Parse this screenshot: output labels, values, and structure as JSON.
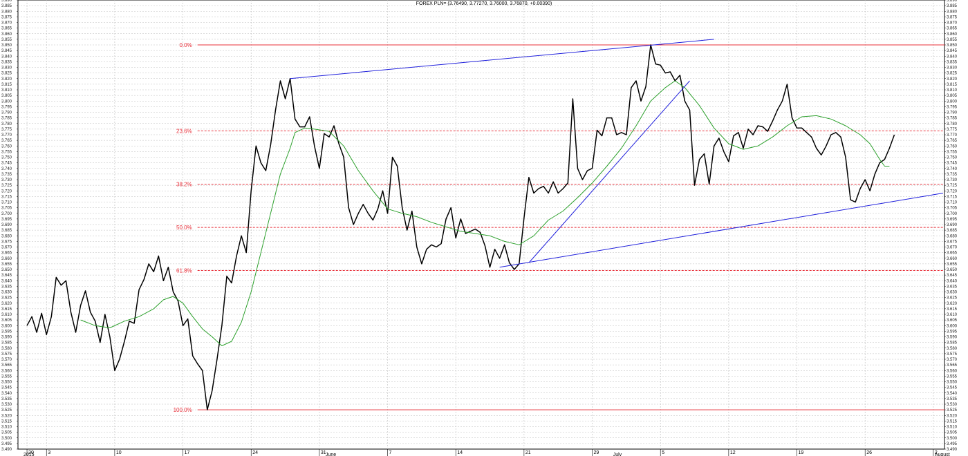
{
  "chart_data": {
    "type": "line",
    "title": "FOREX PLN= (3.76490, 3.77270, 3.76000, 3.76870, +0.00390)",
    "ylim": [
      3.49,
      3.89
    ],
    "ytick_step": 0.005,
    "grid": true,
    "x_axis": {
      "ticks": [
        {
          "label": "30",
          "t": 1
        },
        {
          "label": "3",
          "t": 5
        },
        {
          "label": "10",
          "t": 19
        },
        {
          "label": "17",
          "t": 33
        },
        {
          "label": "24",
          "t": 47
        },
        {
          "label": "31",
          "t": 61
        },
        {
          "label": "7",
          "t": 75
        },
        {
          "label": "14",
          "t": 89
        },
        {
          "label": "21",
          "t": 103
        },
        {
          "label": "29",
          "t": 117
        },
        {
          "label": "5",
          "t": 131
        },
        {
          "label": "12",
          "t": 145
        },
        {
          "label": "19",
          "t": 159
        },
        {
          "label": "26",
          "t": 173
        },
        {
          "label": "2",
          "t": 187
        }
      ],
      "secondary_labels": [
        {
          "label": "2015",
          "t": 0
        },
        {
          "label": "June",
          "t": 62
        },
        {
          "label": "July",
          "t": 121
        },
        {
          "label": "August",
          "t": 187
        }
      ],
      "t_range": [
        0,
        190
      ]
    },
    "series": [
      {
        "color": "#000000",
        "values": [
          [
            1,
            3.6
          ],
          [
            2,
            3.608
          ],
          [
            3,
            3.594
          ],
          [
            4,
            3.611
          ],
          [
            5,
            3.592
          ],
          [
            6,
            3.608
          ],
          [
            7,
            3.643
          ],
          [
            8,
            3.636
          ],
          [
            9,
            3.64
          ],
          [
            10,
            3.612
          ],
          [
            11,
            3.594
          ],
          [
            12,
            3.618
          ],
          [
            13,
            3.631
          ],
          [
            14,
            3.612
          ],
          [
            15,
            3.604
          ],
          [
            16,
            3.585
          ],
          [
            17,
            3.61
          ],
          [
            18,
            3.59
          ],
          [
            19,
            3.56
          ],
          [
            20,
            3.57
          ],
          [
            21,
            3.586
          ],
          [
            22,
            3.604
          ],
          [
            23,
            3.602
          ],
          [
            24,
            3.632
          ],
          [
            25,
            3.641
          ],
          [
            26,
            3.655
          ],
          [
            27,
            3.648
          ],
          [
            28,
            3.662
          ],
          [
            29,
            3.64
          ],
          [
            30,
            3.652
          ],
          [
            31,
            3.63
          ],
          [
            32,
            3.622
          ],
          [
            33,
            3.6
          ],
          [
            34,
            3.606
          ],
          [
            35,
            3.573
          ],
          [
            36,
            3.566
          ],
          [
            37,
            3.56
          ],
          [
            38,
            3.525
          ],
          [
            39,
            3.542
          ],
          [
            40,
            3.57
          ],
          [
            41,
            3.6
          ],
          [
            42,
            3.644
          ],
          [
            43,
            3.638
          ],
          [
            44,
            3.662
          ],
          [
            45,
            3.68
          ],
          [
            46,
            3.665
          ],
          [
            47,
            3.72
          ],
          [
            48,
            3.76
          ],
          [
            49,
            3.745
          ],
          [
            50,
            3.738
          ],
          [
            51,
            3.761
          ],
          [
            52,
            3.792
          ],
          [
            53,
            3.818
          ],
          [
            54,
            3.802
          ],
          [
            55,
            3.82
          ],
          [
            56,
            3.784
          ],
          [
            57,
            3.777
          ],
          [
            58,
            3.777
          ],
          [
            59,
            3.786
          ],
          [
            60,
            3.76
          ],
          [
            61,
            3.74
          ],
          [
            62,
            3.771
          ],
          [
            63,
            3.768
          ],
          [
            64,
            3.778
          ],
          [
            65,
            3.762
          ],
          [
            66,
            3.75
          ],
          [
            67,
            3.705
          ],
          [
            68,
            3.69
          ],
          [
            69,
            3.7
          ],
          [
            70,
            3.708
          ],
          [
            71,
            3.7
          ],
          [
            72,
            3.694
          ],
          [
            73,
            3.704
          ],
          [
            74,
            3.72
          ],
          [
            75,
            3.7
          ],
          [
            76,
            3.75
          ],
          [
            77,
            3.742
          ],
          [
            78,
            3.705
          ],
          [
            79,
            3.685
          ],
          [
            80,
            3.702
          ],
          [
            81,
            3.67
          ],
          [
            82,
            3.655
          ],
          [
            83,
            3.668
          ],
          [
            84,
            3.672
          ],
          [
            85,
            3.67
          ],
          [
            86,
            3.673
          ],
          [
            87,
            3.695
          ],
          [
            88,
            3.705
          ],
          [
            89,
            3.678
          ],
          [
            90,
            3.695
          ],
          [
            91,
            3.682
          ],
          [
            92,
            3.684
          ],
          [
            93,
            3.686
          ],
          [
            94,
            3.683
          ],
          [
            95,
            3.671
          ],
          [
            96,
            3.652
          ],
          [
            97,
            3.668
          ],
          [
            98,
            3.66
          ],
          [
            99,
            3.672
          ],
          [
            100,
            3.656
          ],
          [
            101,
            3.65
          ],
          [
            102,
            3.655
          ],
          [
            103,
            3.696
          ],
          [
            104,
            3.732
          ],
          [
            105,
            3.718
          ],
          [
            106,
            3.722
          ],
          [
            107,
            3.724
          ],
          [
            108,
            3.718
          ],
          [
            109,
            3.728
          ],
          [
            110,
            3.718
          ],
          [
            111,
            3.722
          ],
          [
            112,
            3.727
          ],
          [
            113,
            3.802
          ],
          [
            114,
            3.74
          ],
          [
            115,
            3.73
          ],
          [
            116,
            3.738
          ],
          [
            117,
            3.74
          ],
          [
            118,
            3.774
          ],
          [
            119,
            3.769
          ],
          [
            120,
            3.785
          ],
          [
            121,
            3.785
          ],
          [
            122,
            3.77
          ],
          [
            123,
            3.772
          ],
          [
            124,
            3.77
          ],
          [
            125,
            3.812
          ],
          [
            126,
            3.818
          ],
          [
            127,
            3.8
          ],
          [
            128,
            3.813
          ],
          [
            129,
            3.85
          ],
          [
            130,
            3.833
          ],
          [
            131,
            3.832
          ],
          [
            132,
            3.825
          ],
          [
            133,
            3.826
          ],
          [
            134,
            3.818
          ],
          [
            135,
            3.823
          ],
          [
            136,
            3.8
          ],
          [
            137,
            3.792
          ],
          [
            138,
            3.725
          ],
          [
            139,
            3.748
          ],
          [
            140,
            3.753
          ],
          [
            141,
            3.726
          ],
          [
            142,
            3.76
          ],
          [
            143,
            3.767
          ],
          [
            144,
            3.755
          ],
          [
            145,
            3.746
          ],
          [
            146,
            3.769
          ],
          [
            147,
            3.772
          ],
          [
            148,
            3.758
          ],
          [
            149,
            3.775
          ],
          [
            150,
            3.77
          ],
          [
            151,
            3.778
          ],
          [
            152,
            3.777
          ],
          [
            153,
            3.773
          ],
          [
            154,
            3.782
          ],
          [
            155,
            3.792
          ],
          [
            156,
            3.8
          ],
          [
            157,
            3.815
          ],
          [
            158,
            3.785
          ],
          [
            159,
            3.776
          ],
          [
            160,
            3.776
          ],
          [
            161,
            3.772
          ],
          [
            162,
            3.768
          ],
          [
            163,
            3.758
          ],
          [
            164,
            3.752
          ],
          [
            165,
            3.76
          ],
          [
            166,
            3.77
          ],
          [
            167,
            3.772
          ],
          [
            168,
            3.768
          ],
          [
            169,
            3.75
          ],
          [
            170,
            3.712
          ],
          [
            171,
            3.71
          ],
          [
            172,
            3.722
          ],
          [
            173,
            3.73
          ],
          [
            174,
            3.72
          ],
          [
            175,
            3.735
          ],
          [
            176,
            3.745
          ],
          [
            177,
            3.748
          ],
          [
            178,
            3.758
          ],
          [
            179,
            3.77
          ]
        ]
      },
      {
        "color": "#2ca02c",
        "values": [
          [
            12,
            3.605
          ],
          [
            15,
            3.6
          ],
          [
            18,
            3.598
          ],
          [
            21,
            3.604
          ],
          [
            24,
            3.608
          ],
          [
            27,
            3.615
          ],
          [
            29,
            3.623
          ],
          [
            31,
            3.626
          ],
          [
            33,
            3.62
          ],
          [
            35,
            3.608
          ],
          [
            37,
            3.597
          ],
          [
            39,
            3.59
          ],
          [
            41,
            3.582
          ],
          [
            43,
            3.586
          ],
          [
            45,
            3.603
          ],
          [
            47,
            3.63
          ],
          [
            49,
            3.665
          ],
          [
            51,
            3.7
          ],
          [
            53,
            3.735
          ],
          [
            55,
            3.758
          ],
          [
            56,
            3.772
          ],
          [
            58,
            3.776
          ],
          [
            60,
            3.775
          ],
          [
            63,
            3.773
          ],
          [
            66,
            3.76
          ],
          [
            69,
            3.738
          ],
          [
            72,
            3.72
          ],
          [
            75,
            3.704
          ],
          [
            78,
            3.7
          ],
          [
            81,
            3.697
          ],
          [
            84,
            3.692
          ],
          [
            87,
            3.688
          ],
          [
            90,
            3.684
          ],
          [
            93,
            3.682
          ],
          [
            96,
            3.68
          ],
          [
            99,
            3.675
          ],
          [
            102,
            3.672
          ],
          [
            105,
            3.68
          ],
          [
            108,
            3.694
          ],
          [
            111,
            3.702
          ],
          [
            114,
            3.714
          ],
          [
            117,
            3.727
          ],
          [
            120,
            3.742
          ],
          [
            123,
            3.758
          ],
          [
            126,
            3.778
          ],
          [
            129,
            3.8
          ],
          [
            132,
            3.812
          ],
          [
            134,
            3.818
          ],
          [
            136,
            3.812
          ],
          [
            139,
            3.796
          ],
          [
            142,
            3.776
          ],
          [
            145,
            3.762
          ],
          [
            148,
            3.757
          ],
          [
            151,
            3.76
          ],
          [
            154,
            3.768
          ],
          [
            157,
            3.778
          ],
          [
            160,
            3.786
          ],
          [
            163,
            3.787
          ],
          [
            166,
            3.784
          ],
          [
            169,
            3.778
          ],
          [
            172,
            3.77
          ],
          [
            174,
            3.762
          ],
          [
            176,
            3.748
          ],
          [
            177,
            3.742
          ],
          [
            178,
            3.742
          ]
        ]
      }
    ],
    "trendlines": [
      {
        "color": "#1f1fdc",
        "from": [
          55,
          3.82
        ],
        "to": [
          142,
          3.855
        ]
      },
      {
        "color": "#1f1fdc",
        "from": [
          98,
          3.652
        ],
        "to": [
          189,
          3.718
        ]
      },
      {
        "color": "#1f1fdc",
        "from": [
          104,
          3.656
        ],
        "to": [
          137,
          3.818
        ]
      }
    ],
    "fibonacci": {
      "color": "#e8303a",
      "levels": [
        {
          "label": "0.0%",
          "value": 3.85,
          "solid": true
        },
        {
          "label": "23.6%",
          "value": 3.7734,
          "solid": false
        },
        {
          "label": "38.2%",
          "value": 3.7259,
          "solid": false
        },
        {
          "label": "50.0%",
          "value": 3.6875,
          "solid": false
        },
        {
          "label": "61.8%",
          "value": 3.6491,
          "solid": false
        },
        {
          "label": "100.0%",
          "value": 3.525,
          "solid": true
        }
      ],
      "from_t": 36
    }
  }
}
